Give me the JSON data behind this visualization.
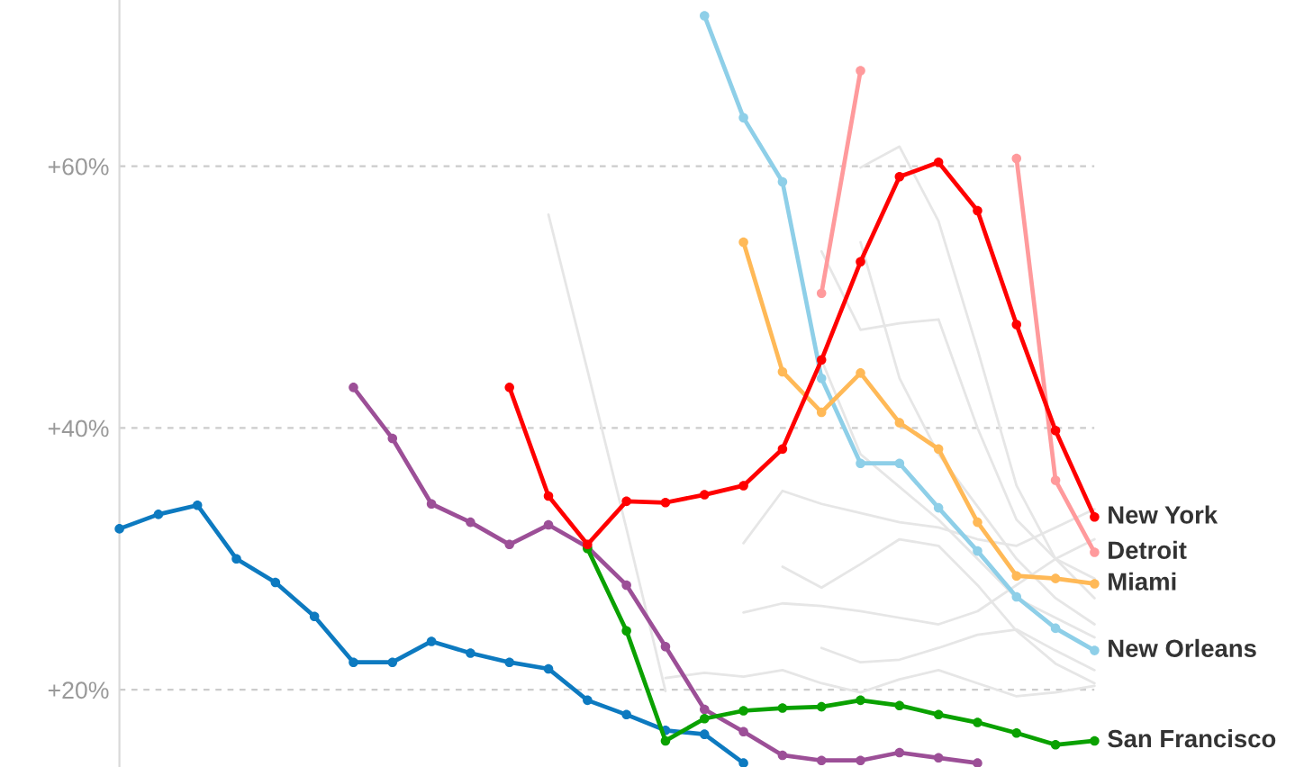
{
  "chart_data": {
    "type": "line",
    "categories": [
      null,
      null,
      null,
      null,
      null,
      null,
      null,
      null,
      null,
      null,
      null,
      null,
      null,
      null,
      null,
      null,
      null,
      null,
      null,
      null,
      null,
      null,
      null,
      null,
      null,
      null
    ],
    "ylim": [
      14.1,
      72.7
    ],
    "yticks": [
      {
        "value": 20,
        "label": "+20%"
      },
      {
        "value": 40,
        "label": "+40%"
      },
      {
        "value": 60,
        "label": "+60%"
      }
    ],
    "grid": "y",
    "marker": "circle",
    "line_style": "solid",
    "tick_labels": "y",
    "legend": false,
    "series": [
      {
        "color": "#e6e6e6",
        "marker": "none",
        "values": [
          null,
          null,
          null,
          null,
          null,
          null,
          null,
          null,
          null,
          null,
          null,
          56.3,
          44.4,
          32.3,
          19.9,
          null,
          null,
          null,
          null,
          null,
          null,
          null,
          null,
          null,
          null,
          null
        ]
      },
      {
        "color": "#e6e6e6",
        "marker": "none",
        "values": [
          null,
          null,
          null,
          null,
          null,
          null,
          null,
          null,
          null,
          null,
          null,
          null,
          null,
          null,
          null,
          null,
          null,
          null,
          53.5,
          47.5,
          48.0,
          48.3,
          40.0,
          33.0,
          30.0,
          28.5
        ]
      },
      {
        "color": "#e6e6e6",
        "marker": "none",
        "values": [
          null,
          null,
          null,
          null,
          null,
          null,
          null,
          null,
          null,
          null,
          null,
          null,
          null,
          null,
          null,
          null,
          null,
          null,
          null,
          59.9,
          61.5,
          55.8,
          46.0,
          35.6,
          30.0,
          27.0
        ]
      },
      {
        "color": "#e6e6e6",
        "marker": "none",
        "values": [
          null,
          null,
          null,
          null,
          null,
          null,
          null,
          null,
          null,
          null,
          null,
          null,
          null,
          null,
          null,
          null,
          null,
          null,
          null,
          54.2,
          43.8,
          38.0,
          34.0,
          30.0,
          27.0,
          25.0
        ]
      },
      {
        "color": "#e6e6e6",
        "marker": "none",
        "values": [
          null,
          null,
          null,
          null,
          null,
          null,
          null,
          null,
          null,
          null,
          null,
          null,
          null,
          null,
          null,
          null,
          null,
          null,
          45.2,
          38.0,
          35.5,
          33.0,
          30.0,
          27.0,
          25.5,
          24.0
        ]
      },
      {
        "color": "#e6e6e6",
        "marker": "none",
        "values": [
          null,
          null,
          null,
          null,
          null,
          null,
          null,
          null,
          null,
          null,
          null,
          null,
          null,
          null,
          null,
          null,
          31.2,
          35.2,
          34.2,
          33.5,
          32.8,
          32.4,
          31.5,
          31.0,
          32.4,
          33.8
        ]
      },
      {
        "color": "#e6e6e6",
        "marker": "none",
        "values": [
          null,
          null,
          null,
          null,
          null,
          null,
          null,
          null,
          null,
          null,
          null,
          null,
          null,
          null,
          null,
          null,
          25.9,
          26.6,
          26.4,
          26.0,
          25.5,
          25.0,
          26.0,
          28.0,
          30.0,
          31.5
        ]
      },
      {
        "color": "#e6e6e6",
        "marker": "none",
        "values": [
          null,
          null,
          null,
          null,
          null,
          null,
          null,
          null,
          null,
          null,
          null,
          null,
          null,
          null,
          null,
          null,
          null,
          29.4,
          27.8,
          29.6,
          31.5,
          31.0,
          28.0,
          24.5,
          22.0,
          20.5
        ]
      },
      {
        "color": "#e6e6e6",
        "marker": "none",
        "values": [
          null,
          null,
          null,
          null,
          null,
          null,
          null,
          null,
          null,
          null,
          null,
          null,
          null,
          null,
          null,
          null,
          null,
          null,
          23.2,
          22.1,
          22.3,
          23.2,
          24.2,
          24.6,
          23.0,
          21.5
        ]
      },
      {
        "color": "#e6e6e6",
        "marker": "none",
        "values": [
          null,
          null,
          null,
          null,
          null,
          null,
          null,
          null,
          null,
          null,
          null,
          null,
          null,
          null,
          20.9,
          21.3,
          21.0,
          21.5,
          20.5,
          19.8,
          20.8,
          21.5,
          20.5,
          19.5,
          19.8,
          20.3
        ]
      },
      {
        "color": "#0d7ac0",
        "values": [
          32.3,
          33.4,
          34.1,
          30.0,
          28.2,
          25.6,
          22.1,
          22.1,
          23.7,
          22.8,
          22.1,
          21.6,
          19.2,
          18.1,
          16.9,
          16.6,
          14.4,
          null,
          null,
          null,
          null,
          null,
          null,
          null,
          null,
          null
        ]
      },
      {
        "color": "#9c4f97",
        "values": [
          null,
          null,
          null,
          null,
          null,
          null,
          43.1,
          39.2,
          34.2,
          32.8,
          31.1,
          32.6,
          30.9,
          28.0,
          23.3,
          18.5,
          16.8,
          15.0,
          14.6,
          14.6,
          15.2,
          14.8,
          14.4,
          null,
          null,
          null
        ]
      },
      {
        "name": "San Francisco",
        "color": "#0aa100",
        "values": [
          null,
          null,
          null,
          null,
          null,
          null,
          null,
          null,
          null,
          null,
          null,
          null,
          30.8,
          24.5,
          16.1,
          17.8,
          18.4,
          18.6,
          18.7,
          19.2,
          18.8,
          18.1,
          17.5,
          16.7,
          15.8,
          16.1
        ]
      },
      {
        "name": "New Orleans",
        "color": "#8ecfe8",
        "values": [
          null,
          null,
          null,
          null,
          null,
          null,
          null,
          null,
          null,
          null,
          null,
          null,
          null,
          null,
          null,
          71.5,
          63.7,
          58.8,
          43.8,
          37.3,
          37.3,
          33.9,
          30.6,
          27.1,
          24.7,
          23.0
        ]
      },
      {
        "name": "Miami",
        "color": "#ffb957",
        "values": [
          null,
          null,
          null,
          null,
          null,
          null,
          null,
          null,
          null,
          null,
          null,
          null,
          null,
          null,
          null,
          null,
          54.2,
          44.3,
          41.2,
          44.2,
          40.4,
          38.4,
          32.8,
          28.7,
          28.5,
          28.1
        ]
      },
      {
        "name": "Detroit",
        "color": "#ff9a9c",
        "values": [
          null,
          null,
          null,
          null,
          null,
          null,
          null,
          null,
          null,
          null,
          null,
          null,
          null,
          null,
          null,
          null,
          null,
          null,
          50.3,
          67.3,
          null,
          null,
          null,
          60.6,
          36.0,
          30.5
        ]
      },
      {
        "name": "New York",
        "color": "#ff0000",
        "values": [
          null,
          null,
          null,
          null,
          null,
          null,
          null,
          null,
          null,
          null,
          43.1,
          34.8,
          31.1,
          34.4,
          34.3,
          34.9,
          35.6,
          38.4,
          45.2,
          52.7,
          59.2,
          60.3,
          56.6,
          47.9,
          39.8,
          33.2
        ]
      }
    ]
  }
}
